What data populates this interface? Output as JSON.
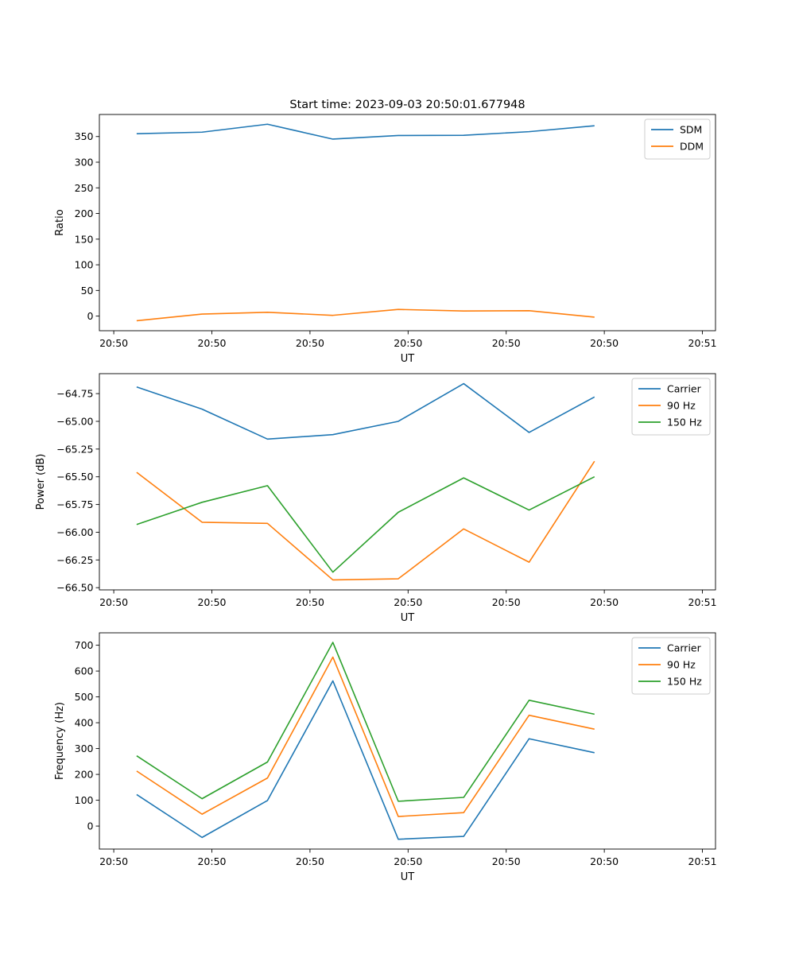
{
  "chart_data": [
    {
      "type": "line",
      "title": "Start time: 2023-09-03 20:50:01.677948",
      "xlabel": "UT",
      "ylabel": "Ratio",
      "xlim": [
        -0.57,
        8.85
      ],
      "ylim": [
        -28.5,
        393
      ],
      "x_ticks": [
        {
          "pos": -0.35,
          "label": "20:50"
        },
        {
          "pos": 1.15,
          "label": "20:50"
        },
        {
          "pos": 2.65,
          "label": "20:50"
        },
        {
          "pos": 4.15,
          "label": "20:50"
        },
        {
          "pos": 5.65,
          "label": "20:50"
        },
        {
          "pos": 7.15,
          "label": "20:50"
        },
        {
          "pos": 8.65,
          "label": "20:51"
        }
      ],
      "y_ticks": [
        0,
        50,
        100,
        150,
        200,
        250,
        300,
        350
      ],
      "y_tick_labels": [
        "0",
        "50",
        "100",
        "150",
        "200",
        "250",
        "300",
        "350"
      ],
      "x": [
        0,
        1,
        2,
        3,
        4,
        5,
        6,
        7
      ],
      "series": [
        {
          "name": "SDM",
          "color": "#1f77b4",
          "values": [
            355.5,
            358.5,
            374,
            345,
            352,
            352.5,
            359.5,
            371
          ]
        },
        {
          "name": "DDM",
          "color": "#ff7f0e",
          "values": [
            -9,
            4,
            7.5,
            1.5,
            13,
            10,
            10.5,
            -2
          ]
        }
      ],
      "legend": "top-right",
      "grid": false
    },
    {
      "type": "line",
      "title": "",
      "xlabel": "UT",
      "ylabel": "Power (dB)",
      "xlim": [
        -0.57,
        8.85
      ],
      "ylim": [
        -66.52,
        -64.57
      ],
      "x_ticks": [
        {
          "pos": -0.35,
          "label": "20:50"
        },
        {
          "pos": 1.15,
          "label": "20:50"
        },
        {
          "pos": 2.65,
          "label": "20:50"
        },
        {
          "pos": 4.15,
          "label": "20:50"
        },
        {
          "pos": 5.65,
          "label": "20:50"
        },
        {
          "pos": 7.15,
          "label": "20:50"
        },
        {
          "pos": 8.65,
          "label": "20:51"
        }
      ],
      "y_ticks": [
        -66.5,
        -66.25,
        -66.0,
        -65.75,
        -65.5,
        -65.25,
        -65.0,
        -64.75
      ],
      "y_tick_labels": [
        "−66.50",
        "−66.25",
        "−66.00",
        "−65.75",
        "−65.50",
        "−65.25",
        "−65.00",
        "−64.75"
      ],
      "x": [
        0,
        1,
        2,
        3,
        4,
        5,
        6,
        7
      ],
      "series": [
        {
          "name": "Carrier",
          "color": "#1f77b4",
          "values": [
            -64.69,
            -64.89,
            -65.16,
            -65.12,
            -65.0,
            -64.66,
            -65.1,
            -64.78
          ]
        },
        {
          "name": "90 Hz",
          "color": "#ff7f0e",
          "values": [
            -65.46,
            -65.91,
            -65.92,
            -66.43,
            -66.42,
            -65.97,
            -66.27,
            -65.36
          ]
        },
        {
          "name": "150 Hz",
          "color": "#2ca02c",
          "values": [
            -65.93,
            -65.73,
            -65.58,
            -66.36,
            -65.82,
            -65.51,
            -65.8,
            -65.5
          ]
        }
      ],
      "legend": "top-right",
      "grid": false
    },
    {
      "type": "line",
      "title": "",
      "xlabel": "UT",
      "ylabel": "Frequency (Hz)",
      "xlim": [
        -0.57,
        8.85
      ],
      "ylim": [
        -89,
        748
      ],
      "x_ticks": [
        {
          "pos": -0.35,
          "label": "20:50"
        },
        {
          "pos": 1.15,
          "label": "20:50"
        },
        {
          "pos": 2.65,
          "label": "20:50"
        },
        {
          "pos": 4.15,
          "label": "20:50"
        },
        {
          "pos": 5.65,
          "label": "20:50"
        },
        {
          "pos": 7.15,
          "label": "20:50"
        },
        {
          "pos": 8.65,
          "label": "20:51"
        }
      ],
      "y_ticks": [
        0,
        100,
        200,
        300,
        400,
        500,
        600,
        700
      ],
      "y_tick_labels": [
        "0",
        "100",
        "200",
        "300",
        "400",
        "500",
        "600",
        "700"
      ],
      "x": [
        0,
        1,
        2,
        3,
        4,
        5,
        6,
        7
      ],
      "series": [
        {
          "name": "Carrier",
          "color": "#1f77b4",
          "values": [
            122,
            -44,
            99,
            562,
            -51,
            -40,
            338,
            284
          ]
        },
        {
          "name": "90 Hz",
          "color": "#ff7f0e",
          "values": [
            213,
            46,
            186,
            654,
            37,
            52,
            429,
            375
          ]
        },
        {
          "name": "150 Hz",
          "color": "#2ca02c",
          "values": [
            272,
            106,
            248,
            711,
            96,
            111,
            487,
            433
          ]
        }
      ],
      "legend": "top-right",
      "grid": false
    }
  ]
}
